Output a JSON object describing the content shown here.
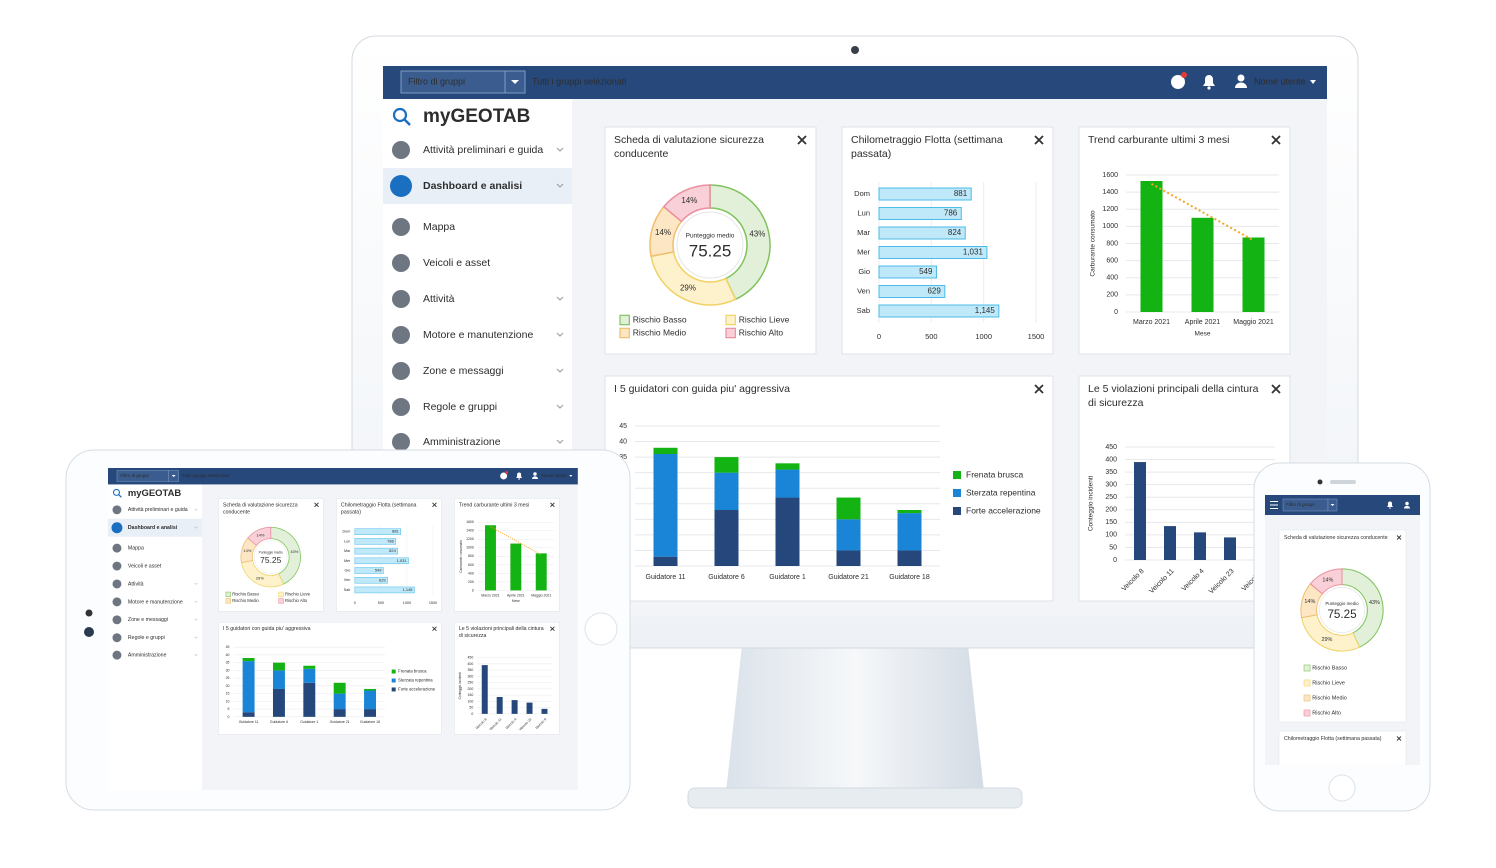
{
  "topbar": {
    "group_filter": "Filtro di gruppi",
    "groups_selected": "Tutti i gruppi selezionati",
    "user": "Nome utente"
  },
  "sidebar": {
    "logo": "myGEOTAB",
    "items": [
      "Attività preliminari e guida",
      "Dashboard e analisi",
      "Mappa",
      "Veicoli e asset",
      "Attività",
      "Motore e manutenzione",
      "Zone e messaggi",
      "Regole e gruppi",
      "Amministrazione"
    ],
    "expandable": [
      true,
      true,
      false,
      false,
      true,
      true,
      true,
      true,
      true
    ],
    "active": 1
  },
  "cards": [
    {
      "title": "Scheda di valutazione sicurezza conducente",
      "chart": {
        "type": "donut",
        "center_label": "Punteggio medio",
        "center_value": 75.25,
        "categories": [
          "Rischio Basso",
          "Rischio Lieve",
          "Rischio Medio",
          "Rischio Alto"
        ],
        "values": [
          43,
          29,
          14,
          14
        ],
        "value_labels": [
          "43%",
          "29%",
          "14%",
          "14%"
        ],
        "colors": [
          "#e2f0d9",
          "#fdf2cc",
          "#fde6c4",
          "#f9d0d8"
        ],
        "strokes": [
          "#7fc35c",
          "#f0d264",
          "#efbf6e",
          "#ec8ea0"
        ]
      }
    },
    {
      "title": "Chilometraggio Flotta (settimana passata)",
      "chart": {
        "type": "hbar",
        "categories": [
          "Dom",
          "Lun",
          "Mar",
          "Mer",
          "Gio",
          "Ven",
          "Sab"
        ],
        "values": [
          881,
          786,
          824,
          1031,
          549,
          629,
          1145
        ],
        "value_labels": [
          "881",
          "786",
          "824",
          "1,031",
          "549",
          "629",
          "1,145"
        ],
        "color": "#bfe8f8",
        "stroke": "#4bbbe8",
        "xlim": [
          0,
          1500
        ],
        "xticks": [
          0,
          500,
          1000,
          1500
        ]
      }
    },
    {
      "title": "Trend carburante ultimi 3 mesi",
      "chart": {
        "type": "bar",
        "categories": [
          "Marzo 2021",
          "Aprile 2021",
          "Maggio 2021"
        ],
        "values": [
          1530,
          1100,
          870
        ],
        "color": "#13b313",
        "trendline": true,
        "trend_color": "#f5a623",
        "xlabel": "Mese",
        "ylabel": "Carburante consumato",
        "ylim": [
          0,
          1600
        ],
        "yticks": [
          0,
          200,
          400,
          600,
          800,
          1000,
          1200,
          1400,
          1600
        ]
      }
    },
    {
      "title": "I 5 guidatori con guida piu' aggressiva",
      "chart": {
        "type": "stacked",
        "categories": [
          "Guidatore 11",
          "Guidatore 6",
          "Guidatore 1",
          "Guidatore 21",
          "Guidatore 18"
        ],
        "series": [
          {
            "name": "Frenata brusca",
            "color": "#13b313",
            "values": [
              2,
              5,
              2,
              7,
              1
            ]
          },
          {
            "name": "Sterzata repentina",
            "color": "#1a85d6",
            "values": [
              33,
              12,
              9,
              10,
              12
            ]
          },
          {
            "name": "Forte accelerazione",
            "color": "#25477b",
            "values": [
              3,
              18,
              22,
              5,
              5
            ]
          }
        ],
        "ylim": [
          0,
          45
        ],
        "yticks": [
          0,
          5,
          10,
          15,
          20,
          25,
          30,
          35,
          40,
          45
        ]
      }
    },
    {
      "title": "Le 5 violazioni principali della cintura di sicurezza",
      "chart": {
        "type": "bar",
        "categories": [
          "Veicolo 8",
          "Veicolo 11",
          "Veicolo 4",
          "Veicolo 23",
          "Veicolo 9"
        ],
        "values": [
          390,
          135,
          110,
          90,
          40
        ],
        "color": "#25477b",
        "ylabel": "Conteggio incidenti",
        "rotate_labels": true,
        "ylim": [
          0,
          450
        ],
        "yticks": [
          0,
          50,
          100,
          150,
          200,
          250,
          300,
          350,
          400,
          450
        ]
      }
    }
  ]
}
